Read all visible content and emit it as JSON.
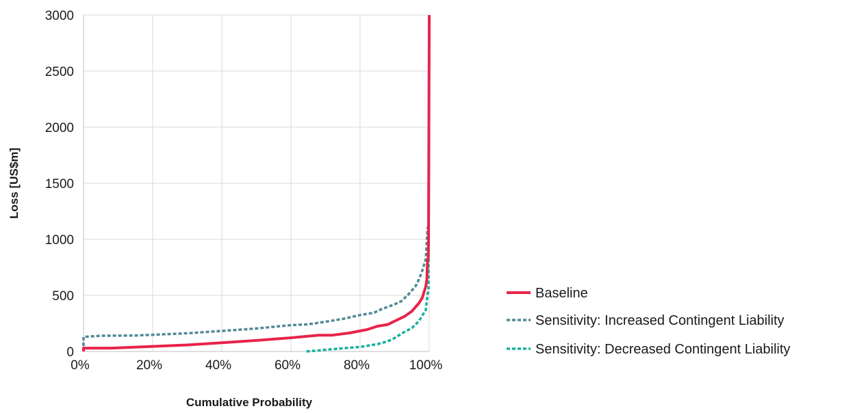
{
  "chart_data": {
    "type": "line",
    "title": "",
    "xlabel": "Cumulative Probability",
    "ylabel": "Loss [US$m]",
    "xlim": [
      0,
      1
    ],
    "ylim": [
      0,
      3000
    ],
    "x_ticks": [
      0,
      0.2,
      0.4,
      0.6,
      0.8,
      1.0
    ],
    "x_tick_labels": [
      "0%",
      "20%",
      "40%",
      "60%",
      "80%",
      "100%"
    ],
    "y_ticks": [
      0,
      500,
      1000,
      1500,
      2000,
      2500,
      3000
    ],
    "y_tick_labels": [
      "0",
      "500",
      "1000",
      "1500",
      "2000",
      "2500",
      "3000"
    ],
    "grid": "vertical and horizontal",
    "legend_position": "right",
    "series": [
      {
        "name": "Baseline",
        "color": "#e8234a",
        "style": "solid",
        "points": [
          [
            0.0,
            0
          ],
          [
            0.0,
            30
          ],
          [
            0.08,
            30
          ],
          [
            0.2,
            45
          ],
          [
            0.3,
            58
          ],
          [
            0.4,
            78
          ],
          [
            0.5,
            98
          ],
          [
            0.6,
            122
          ],
          [
            0.68,
            145
          ],
          [
            0.72,
            145
          ],
          [
            0.77,
            165
          ],
          [
            0.82,
            195
          ],
          [
            0.85,
            225
          ],
          [
            0.88,
            240
          ],
          [
            0.9,
            270
          ],
          [
            0.93,
            315
          ],
          [
            0.95,
            360
          ],
          [
            0.96,
            395
          ],
          [
            0.97,
            430
          ],
          [
            0.98,
            480
          ],
          [
            0.985,
            530
          ],
          [
            0.99,
            580
          ],
          [
            0.993,
            640
          ],
          [
            0.995,
            810
          ],
          [
            0.997,
            830
          ],
          [
            0.998,
            1000
          ],
          [
            1.0,
            3000
          ]
        ]
      },
      {
        "name": "Sensitivity: Increased Contingent Liability",
        "color": "#4f8a94",
        "style": "dashed",
        "points": [
          [
            0.0,
            0
          ],
          [
            0.0,
            130
          ],
          [
            0.05,
            140
          ],
          [
            0.15,
            142
          ],
          [
            0.3,
            162
          ],
          [
            0.4,
            183
          ],
          [
            0.5,
            205
          ],
          [
            0.6,
            235
          ],
          [
            0.65,
            242
          ],
          [
            0.7,
            265
          ],
          [
            0.75,
            290
          ],
          [
            0.8,
            325
          ],
          [
            0.84,
            345
          ],
          [
            0.86,
            375
          ],
          [
            0.9,
            420
          ],
          [
            0.92,
            450
          ],
          [
            0.94,
            510
          ],
          [
            0.96,
            580
          ],
          [
            0.97,
            640
          ],
          [
            0.98,
            720
          ],
          [
            0.99,
            825
          ],
          [
            0.995,
            1100
          ],
          [
            0.998,
            1120
          ],
          [
            1.0,
            3000
          ]
        ]
      },
      {
        "name": "Sensitivity: Decreased Contingent Liability",
        "color": "#16b09b",
        "style": "dashed",
        "points": [
          [
            0.645,
            0
          ],
          [
            0.7,
            15
          ],
          [
            0.75,
            28
          ],
          [
            0.8,
            40
          ],
          [
            0.85,
            65
          ],
          [
            0.88,
            90
          ],
          [
            0.9,
            120
          ],
          [
            0.92,
            160
          ],
          [
            0.95,
            210
          ],
          [
            0.97,
            270
          ],
          [
            0.98,
            320
          ],
          [
            0.99,
            370
          ],
          [
            0.995,
            510
          ],
          [
            0.998,
            545
          ],
          [
            1.0,
            3000
          ]
        ]
      }
    ]
  }
}
